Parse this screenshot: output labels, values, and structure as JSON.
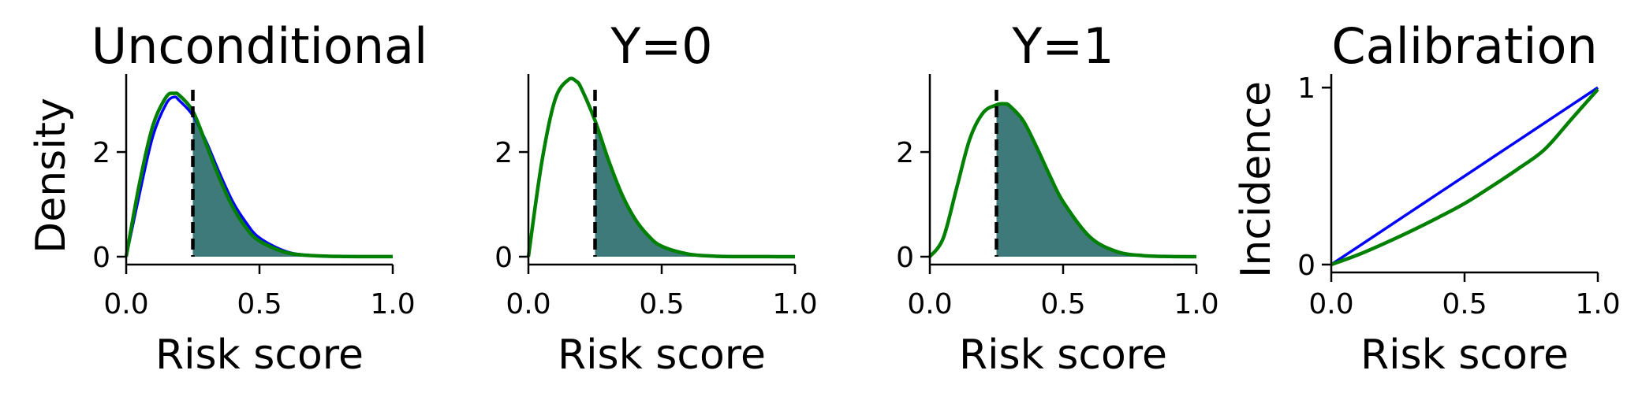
{
  "figure": {
    "colors": {
      "blue": "#0000ff",
      "green": "#008000",
      "fill": "#2f6f6f",
      "threshold": "#000000"
    }
  },
  "chart_data": [
    {
      "type": "line",
      "title": "Unconditional",
      "xlabel": "Risk score",
      "ylabel": "Density",
      "xlim": [
        0,
        1
      ],
      "ylim": [
        0,
        3.4
      ],
      "xticks": [
        0,
        0.5,
        1
      ],
      "xtick_labels": [
        "0.0",
        "0.5",
        "1.0"
      ],
      "yticks": [
        0,
        2
      ],
      "ytick_labels": [
        "0",
        "2"
      ],
      "threshold": 0.25,
      "shaded_above_threshold": true,
      "x": [
        0,
        0.05,
        0.1,
        0.15,
        0.18,
        0.2,
        0.25,
        0.3,
        0.35,
        0.4,
        0.45,
        0.5,
        0.6,
        0.7,
        0.8,
        0.9,
        1.0
      ],
      "series": [
        {
          "color": "#0000ff",
          "values": [
            0,
            1.2,
            2.3,
            2.92,
            3.05,
            2.98,
            2.7,
            2.2,
            1.6,
            1.05,
            0.65,
            0.36,
            0.1,
            0.02,
            0.004,
            0.001,
            0
          ]
        },
        {
          "color": "#008000",
          "values": [
            0,
            1.4,
            2.5,
            3.05,
            3.12,
            3.08,
            2.78,
            2.15,
            1.5,
            0.95,
            0.55,
            0.3,
            0.08,
            0.02,
            0.005,
            0.002,
            0.001
          ]
        }
      ]
    },
    {
      "type": "line",
      "title": "Y=0",
      "xlabel": "Risk score",
      "ylabel": "",
      "xlim": [
        0,
        1
      ],
      "ylim": [
        0,
        3.4
      ],
      "xticks": [
        0,
        0.5,
        1
      ],
      "xtick_labels": [
        "0.0",
        "0.5",
        "1.0"
      ],
      "yticks": [
        0,
        2
      ],
      "ytick_labels": [
        "0",
        "2"
      ],
      "threshold": 0.25,
      "shaded_above_threshold": true,
      "x": [
        0,
        0.05,
        0.1,
        0.15,
        0.18,
        0.2,
        0.25,
        0.3,
        0.35,
        0.4,
        0.45,
        0.5,
        0.6,
        0.7,
        0.8,
        0.9,
        1.0
      ],
      "series": [
        {
          "color": "#008000",
          "values": [
            0,
            1.8,
            3.0,
            3.38,
            3.35,
            3.2,
            2.6,
            1.85,
            1.2,
            0.72,
            0.4,
            0.2,
            0.05,
            0.01,
            0.002,
            0.001,
            0
          ]
        }
      ]
    },
    {
      "type": "line",
      "title": "Y=1",
      "xlabel": "Risk score",
      "ylabel": "",
      "xlim": [
        0,
        1
      ],
      "ylim": [
        0,
        3.4
      ],
      "xticks": [
        0,
        0.5,
        1
      ],
      "xtick_labels": [
        "0.0",
        "0.5",
        "1.0"
      ],
      "yticks": [
        0,
        2
      ],
      "ytick_labels": [
        "0",
        "2"
      ],
      "threshold": 0.25,
      "shaded_above_threshold": true,
      "x": [
        0,
        0.05,
        0.1,
        0.15,
        0.2,
        0.25,
        0.28,
        0.3,
        0.35,
        0.4,
        0.45,
        0.5,
        0.6,
        0.7,
        0.8,
        0.9,
        1.0
      ],
      "series": [
        {
          "color": "#008000",
          "values": [
            0,
            0.35,
            1.3,
            2.25,
            2.75,
            2.9,
            2.92,
            2.88,
            2.6,
            2.1,
            1.55,
            1.05,
            0.38,
            0.1,
            0.02,
            0.003,
            0
          ]
        }
      ]
    },
    {
      "type": "line",
      "title": "Calibration",
      "xlabel": "Risk score",
      "ylabel": "Incidence",
      "xlim": [
        0,
        1
      ],
      "ylim": [
        0,
        1.05
      ],
      "xticks": [
        0,
        0.5,
        1
      ],
      "xtick_labels": [
        "0.0",
        "0.5",
        "1.0"
      ],
      "yticks": [
        0,
        1
      ],
      "ytick_labels": [
        "0",
        "1"
      ],
      "x": [
        0,
        0.1,
        0.2,
        0.3,
        0.4,
        0.5,
        0.6,
        0.7,
        0.8,
        0.9,
        1.0
      ],
      "series": [
        {
          "color": "#0000ff",
          "values": [
            0,
            0.1,
            0.2,
            0.3,
            0.4,
            0.5,
            0.6,
            0.7,
            0.8,
            0.9,
            1.0
          ]
        },
        {
          "color": "#008000",
          "values": [
            0,
            0.055,
            0.12,
            0.19,
            0.265,
            0.345,
            0.44,
            0.54,
            0.65,
            0.82,
            0.99
          ]
        }
      ]
    }
  ]
}
